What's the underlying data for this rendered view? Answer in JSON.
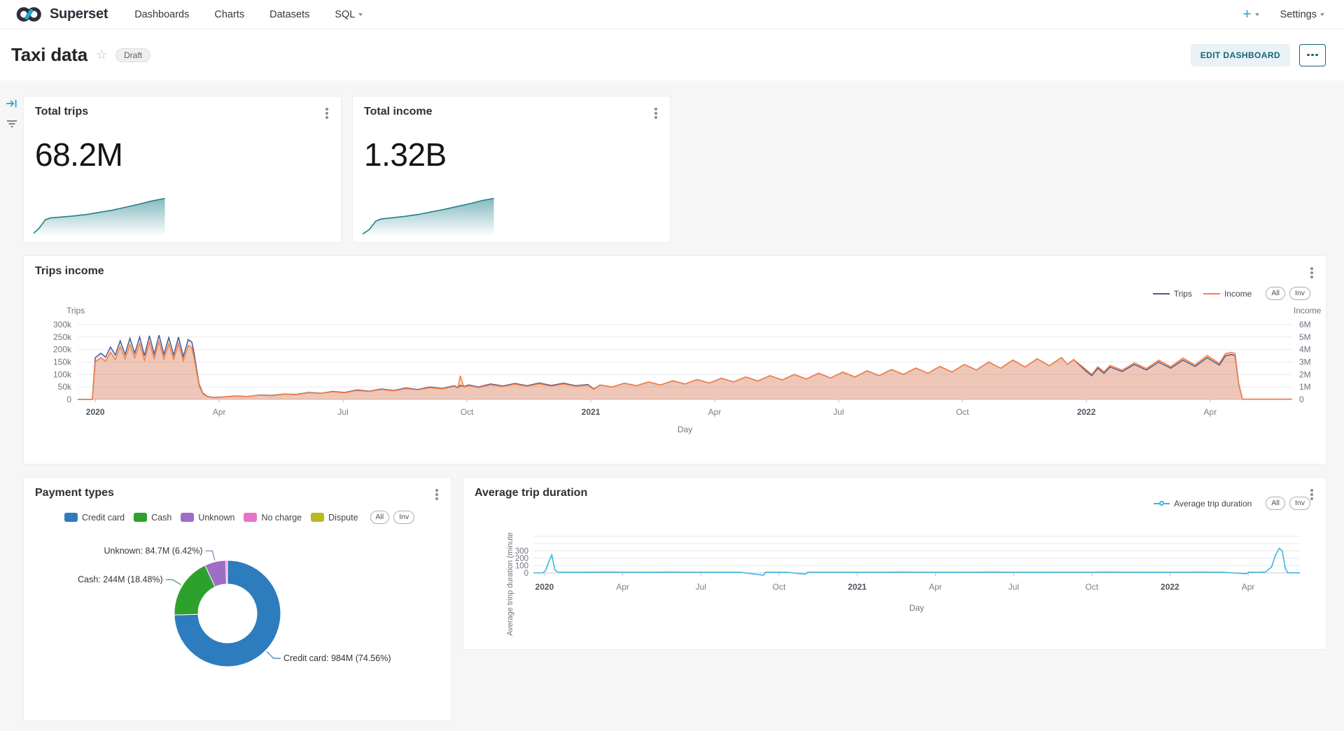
{
  "nav": {
    "brand": "Superset",
    "items": [
      {
        "label": "Dashboards"
      },
      {
        "label": "Charts"
      },
      {
        "label": "Datasets"
      },
      {
        "label": "SQL"
      }
    ],
    "plus_label": "+",
    "settings_label": "Settings"
  },
  "header": {
    "title": "Taxi data",
    "status_badge": "Draft",
    "edit_button": "EDIT DASHBOARD"
  },
  "kpi_cards": [
    {
      "title": "Total trips",
      "value": "68.2M",
      "spark_color": "#20808a",
      "spark": [
        [
          0,
          0.05
        ],
        [
          4,
          0.18
        ],
        [
          9,
          0.42
        ],
        [
          13,
          0.47
        ],
        [
          20,
          0.49
        ],
        [
          30,
          0.52
        ],
        [
          40,
          0.56
        ],
        [
          50,
          0.62
        ],
        [
          60,
          0.68
        ],
        [
          70,
          0.76
        ],
        [
          80,
          0.84
        ],
        [
          90,
          0.93
        ],
        [
          100,
          1
        ]
      ]
    },
    {
      "title": "Total income",
      "value": "1.32B",
      "spark_color": "#20808a",
      "spark": [
        [
          0,
          0.03
        ],
        [
          5,
          0.15
        ],
        [
          10,
          0.38
        ],
        [
          14,
          0.44
        ],
        [
          22,
          0.47
        ],
        [
          32,
          0.51
        ],
        [
          42,
          0.56
        ],
        [
          52,
          0.63
        ],
        [
          62,
          0.7
        ],
        [
          72,
          0.78
        ],
        [
          82,
          0.86
        ],
        [
          92,
          0.95
        ],
        [
          100,
          1
        ]
      ]
    }
  ],
  "chart_data": [
    {
      "id": "trips_income",
      "type": "line",
      "title": "Trips income",
      "xlabel": "Day",
      "x_ticks": [
        [
          "2020",
          0.0145,
          1
        ],
        [
          "Apr",
          0.1165,
          0
        ],
        [
          "Jul",
          0.2185,
          0
        ],
        [
          "Oct",
          0.3205,
          0
        ],
        [
          "2021",
          0.4225,
          1
        ],
        [
          "Apr",
          0.5245,
          0
        ],
        [
          "Jul",
          0.6265,
          0
        ],
        [
          "Oct",
          0.7285,
          0
        ],
        [
          "2022",
          0.8305,
          1
        ],
        [
          "Apr",
          0.9325,
          0
        ]
      ],
      "y_left": {
        "title": "Trips",
        "max": 300,
        "unit": "k",
        "ticks": [
          "300k",
          "250k",
          "200k",
          "150k",
          "100k",
          "50k",
          "0"
        ]
      },
      "y_right": {
        "title": "Income",
        "max": 6,
        "unit": "M",
        "ticks": [
          "6M",
          "5M",
          "4M",
          "3M",
          "2M",
          "1M",
          "0"
        ]
      },
      "range_buttons": [
        "All",
        "Inv"
      ],
      "series": [
        {
          "name": "Trips",
          "color": "#4c5a8f",
          "fill": "rgba(76,90,143,0.13)",
          "axis": "left"
        },
        {
          "name": "Income",
          "color": "#fc7d40",
          "fill": "rgba(252,125,64,0.32)",
          "axis": "right"
        }
      ],
      "points": [
        [
          0,
          0,
          0
        ],
        [
          0.012,
          0,
          0
        ],
        [
          0.0145,
          168,
          3.02
        ],
        [
          0.019,
          185,
          3.33
        ],
        [
          0.023,
          170,
          3.06
        ],
        [
          0.027,
          210,
          3.78
        ],
        [
          0.031,
          178,
          3.2
        ],
        [
          0.035,
          235,
          4.23
        ],
        [
          0.039,
          180,
          3.24
        ],
        [
          0.043,
          245,
          4.41
        ],
        [
          0.047,
          185,
          3.33
        ],
        [
          0.051,
          250,
          4.5
        ],
        [
          0.055,
          175,
          3.15
        ],
        [
          0.059,
          255,
          4.59
        ],
        [
          0.063,
          182,
          3.28
        ],
        [
          0.067,
          258,
          4.64
        ],
        [
          0.071,
          180,
          3.24
        ],
        [
          0.075,
          248,
          4.46
        ],
        [
          0.079,
          178,
          3.2
        ],
        [
          0.083,
          250,
          4.5
        ],
        [
          0.087,
          172,
          3.1
        ],
        [
          0.091,
          240,
          4.32
        ],
        [
          0.094,
          230,
          4.14
        ],
        [
          0.096,
          180,
          3.24
        ],
        [
          0.098,
          120,
          2.16
        ],
        [
          0.1,
          60,
          1.08
        ],
        [
          0.103,
          25,
          0.45
        ],
        [
          0.107,
          12,
          0.22
        ],
        [
          0.112,
          8,
          0.14
        ],
        [
          0.12,
          10,
          0.19
        ],
        [
          0.13,
          14,
          0.27
        ],
        [
          0.14,
          12,
          0.23
        ],
        [
          0.15,
          18,
          0.34
        ],
        [
          0.16,
          16,
          0.3
        ],
        [
          0.17,
          22,
          0.42
        ],
        [
          0.18,
          20,
          0.38
        ],
        [
          0.19,
          28,
          0.53
        ],
        [
          0.2,
          25,
          0.48
        ],
        [
          0.21,
          32,
          0.61
        ],
        [
          0.22,
          28,
          0.53
        ],
        [
          0.23,
          38,
          0.72
        ],
        [
          0.24,
          33,
          0.63
        ],
        [
          0.25,
          42,
          0.8
        ],
        [
          0.26,
          36,
          0.68
        ],
        [
          0.27,
          46,
          0.87
        ],
        [
          0.28,
          40,
          0.76
        ],
        [
          0.29,
          50,
          0.95
        ],
        [
          0.3,
          44,
          0.84
        ],
        [
          0.31,
          55,
          1.05
        ],
        [
          0.313,
          48,
          0.91
        ],
        [
          0.315,
          56,
          1.9
        ],
        [
          0.318,
          52,
          0.99
        ],
        [
          0.322,
          58,
          1.1
        ],
        [
          0.33,
          50,
          0.95
        ],
        [
          0.34,
          62,
          1.18
        ],
        [
          0.35,
          54,
          1.03
        ],
        [
          0.36,
          64,
          1.22
        ],
        [
          0.37,
          55,
          1.05
        ],
        [
          0.38,
          66,
          1.25
        ],
        [
          0.39,
          56,
          1.06
        ],
        [
          0.4,
          65,
          1.24
        ],
        [
          0.41,
          55,
          1.05
        ],
        [
          0.42,
          60,
          1.14
        ],
        [
          0.425,
          42,
          0.8
        ],
        [
          0.43,
          58,
          1.16
        ],
        [
          0.44,
          50,
          1
        ],
        [
          0.45,
          65,
          1.3
        ],
        [
          0.46,
          55,
          1.1
        ],
        [
          0.47,
          70,
          1.4
        ],
        [
          0.48,
          58,
          1.16
        ],
        [
          0.49,
          75,
          1.5
        ],
        [
          0.5,
          62,
          1.24
        ],
        [
          0.51,
          80,
          1.6
        ],
        [
          0.52,
          66,
          1.32
        ],
        [
          0.53,
          85,
          1.7
        ],
        [
          0.54,
          70,
          1.4
        ],
        [
          0.55,
          90,
          1.8
        ],
        [
          0.56,
          74,
          1.48
        ],
        [
          0.57,
          95,
          1.9
        ],
        [
          0.58,
          78,
          1.56
        ],
        [
          0.59,
          100,
          2
        ],
        [
          0.6,
          82,
          1.64
        ],
        [
          0.61,
          105,
          2.1
        ],
        [
          0.62,
          86,
          1.72
        ],
        [
          0.63,
          110,
          2.2
        ],
        [
          0.64,
          90,
          1.8
        ],
        [
          0.65,
          115,
          2.3
        ],
        [
          0.66,
          95,
          1.9
        ],
        [
          0.67,
          120,
          2.4
        ],
        [
          0.68,
          100,
          2
        ],
        [
          0.69,
          126,
          2.52
        ],
        [
          0.7,
          105,
          2.1
        ],
        [
          0.71,
          132,
          2.64
        ],
        [
          0.72,
          110,
          2.2
        ],
        [
          0.73,
          140,
          2.8
        ],
        [
          0.74,
          118,
          2.36
        ],
        [
          0.75,
          150,
          3
        ],
        [
          0.76,
          125,
          2.5
        ],
        [
          0.77,
          158,
          3.16
        ],
        [
          0.78,
          130,
          2.6
        ],
        [
          0.79,
          163,
          3.26
        ],
        [
          0.8,
          135,
          2.7
        ],
        [
          0.81,
          168,
          3.36
        ],
        [
          0.815,
          140,
          2.8
        ],
        [
          0.82,
          160,
          3.2
        ],
        [
          0.83,
          115,
          2.42
        ],
        [
          0.835,
          95,
          2
        ],
        [
          0.84,
          125,
          2.63
        ],
        [
          0.845,
          105,
          2.21
        ],
        [
          0.85,
          130,
          2.73
        ],
        [
          0.86,
          112,
          2.35
        ],
        [
          0.87,
          140,
          2.94
        ],
        [
          0.88,
          118,
          2.48
        ],
        [
          0.89,
          150,
          3.15
        ],
        [
          0.9,
          125,
          2.63
        ],
        [
          0.91,
          158,
          3.32
        ],
        [
          0.92,
          132,
          2.77
        ],
        [
          0.93,
          168,
          3.53
        ],
        [
          0.94,
          138,
          2.9
        ],
        [
          0.945,
          175,
          3.68
        ],
        [
          0.95,
          180,
          3.78
        ],
        [
          0.953,
          175,
          3.68
        ],
        [
          0.956,
          60,
          1.26
        ],
        [
          0.959,
          1,
          0.02
        ],
        [
          1,
          1,
          0.02
        ]
      ]
    },
    {
      "id": "payment_types",
      "type": "pie",
      "title": "Payment types",
      "range_buttons": [
        "All",
        "Inv"
      ],
      "slices": [
        {
          "name": "Credit card",
          "color": "#2d7cbe",
          "percent": 74.56,
          "value": "984M",
          "value_label": "Credit card: 984M (74.56%)"
        },
        {
          "name": "Cash",
          "color": "#2ea12d",
          "percent": 18.48,
          "value": "244M",
          "value_label": "Cash: 244M (18.48%)"
        },
        {
          "name": "Unknown",
          "color": "#9d6ec6",
          "percent": 6.42,
          "value": "84.7M",
          "value_label": "Unknown: 84.7M (6.42%)"
        },
        {
          "name": "No charge",
          "color": "#e872c5",
          "percent": 0.5
        },
        {
          "name": "Dispute",
          "color": "#b9ba1f",
          "percent": 0.04
        }
      ]
    },
    {
      "id": "avg_trip_duration",
      "type": "line",
      "title": "Average trip duration",
      "xlabel": "Day",
      "ylabel": "Average trinp duration (minute",
      "x_ticks": [
        [
          "2020",
          0.0145,
          1
        ],
        [
          "Apr",
          0.1165,
          0
        ],
        [
          "Jul",
          0.2185,
          0
        ],
        [
          "Oct",
          0.3205,
          0
        ],
        [
          "2021",
          0.4225,
          1
        ],
        [
          "Apr",
          0.5245,
          0
        ],
        [
          "Jul",
          0.6265,
          0
        ],
        [
          "Oct",
          0.7285,
          0
        ],
        [
          "2022",
          0.8305,
          1
        ],
        [
          "Apr",
          0.9325,
          0
        ]
      ],
      "y": {
        "ticks": [
          300,
          200,
          100,
          0
        ],
        "grid_max": 500
      },
      "range_buttons": [
        "All",
        "Inv"
      ],
      "series": [
        {
          "name": "Average trip duration",
          "color": "#3db5e0"
        }
      ],
      "points": [
        [
          0,
          0
        ],
        [
          0.012,
          0
        ],
        [
          0.016,
          30
        ],
        [
          0.02,
          150
        ],
        [
          0.024,
          245
        ],
        [
          0.028,
          40
        ],
        [
          0.032,
          10
        ],
        [
          0.06,
          9
        ],
        [
          0.09,
          11
        ],
        [
          0.12,
          10
        ],
        [
          0.15,
          9
        ],
        [
          0.18,
          11
        ],
        [
          0.21,
          10
        ],
        [
          0.24,
          9
        ],
        [
          0.27,
          10
        ],
        [
          0.3,
          -32
        ],
        [
          0.303,
          9
        ],
        [
          0.33,
          10
        ],
        [
          0.355,
          -18
        ],
        [
          0.358,
          9
        ],
        [
          0.39,
          10
        ],
        [
          0.42,
          9
        ],
        [
          0.45,
          10
        ],
        [
          0.48,
          11
        ],
        [
          0.51,
          10
        ],
        [
          0.54,
          9
        ],
        [
          0.57,
          10
        ],
        [
          0.6,
          11
        ],
        [
          0.63,
          10
        ],
        [
          0.66,
          9
        ],
        [
          0.69,
          10
        ],
        [
          0.72,
          10
        ],
        [
          0.75,
          11
        ],
        [
          0.78,
          10
        ],
        [
          0.81,
          9
        ],
        [
          0.84,
          10
        ],
        [
          0.87,
          11
        ],
        [
          0.9,
          10
        ],
        [
          0.93,
          -12
        ],
        [
          0.933,
          9
        ],
        [
          0.945,
          10
        ],
        [
          0.955,
          12
        ],
        [
          0.963,
          80
        ],
        [
          0.968,
          240
        ],
        [
          0.973,
          335
        ],
        [
          0.977,
          300
        ],
        [
          0.981,
          60
        ],
        [
          0.984,
          2
        ],
        [
          1,
          2
        ]
      ]
    }
  ]
}
